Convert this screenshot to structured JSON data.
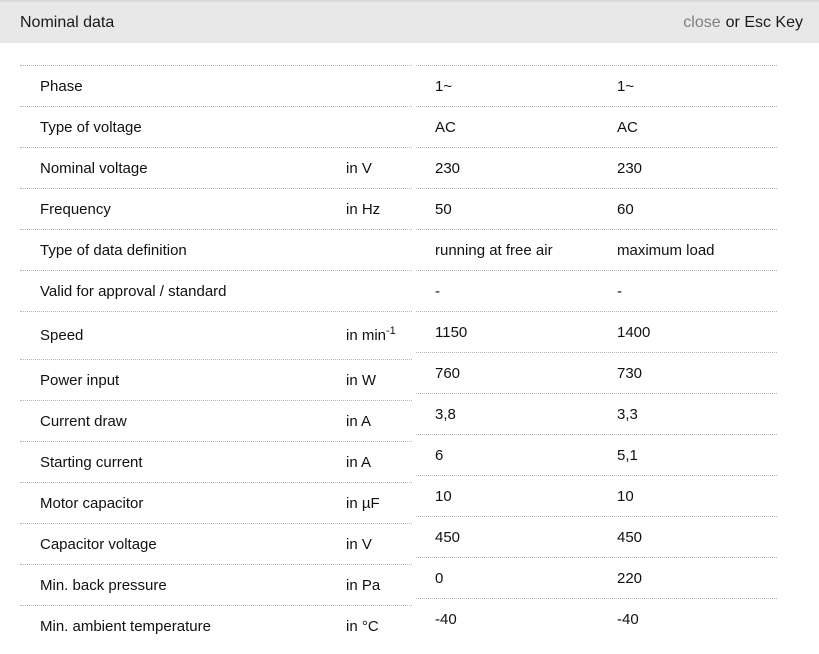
{
  "header": {
    "title": "Nominal data",
    "close_label": "close",
    "esc_hint": "or Esc Key"
  },
  "rows": [
    {
      "label": "Phase",
      "unit": "",
      "v1": "1~",
      "v2": "1~"
    },
    {
      "label": "Type of voltage",
      "unit": "",
      "v1": "AC",
      "v2": "AC"
    },
    {
      "label": "Nominal voltage",
      "unit": "in V",
      "v1": "230",
      "v2": "230"
    },
    {
      "label": "Frequency",
      "unit": "in Hz",
      "v1": "50",
      "v2": "60"
    },
    {
      "label": "Type of data definition",
      "unit": "",
      "v1": "running at free air",
      "v2": "maximum load"
    },
    {
      "label": "Valid for approval / standard",
      "unit": "",
      "v1": "-",
      "v2": "-"
    },
    {
      "label": "Speed",
      "unit": "in min",
      "unit_sup": "-1",
      "v1": "1150",
      "v2": "1400"
    },
    {
      "label": "Power input",
      "unit": "in W",
      "v1": "760",
      "v2": "730"
    },
    {
      "label": "Current draw",
      "unit": "in A",
      "v1": "3,8",
      "v2": "3,3"
    },
    {
      "label": "Starting current",
      "unit": "in A",
      "v1": "6",
      "v2": "5,1"
    },
    {
      "label": "Motor capacitor",
      "unit": "in µF",
      "v1": "10",
      "v2": "10"
    },
    {
      "label": "Capacitor voltage",
      "unit": "in V",
      "v1": "450",
      "v2": "450"
    },
    {
      "label": "Min. back pressure",
      "unit": "in Pa",
      "v1": "0",
      "v2": "220"
    },
    {
      "label": "Min. ambient temperature",
      "unit": "in °C",
      "v1": "-40",
      "v2": "-40"
    }
  ]
}
